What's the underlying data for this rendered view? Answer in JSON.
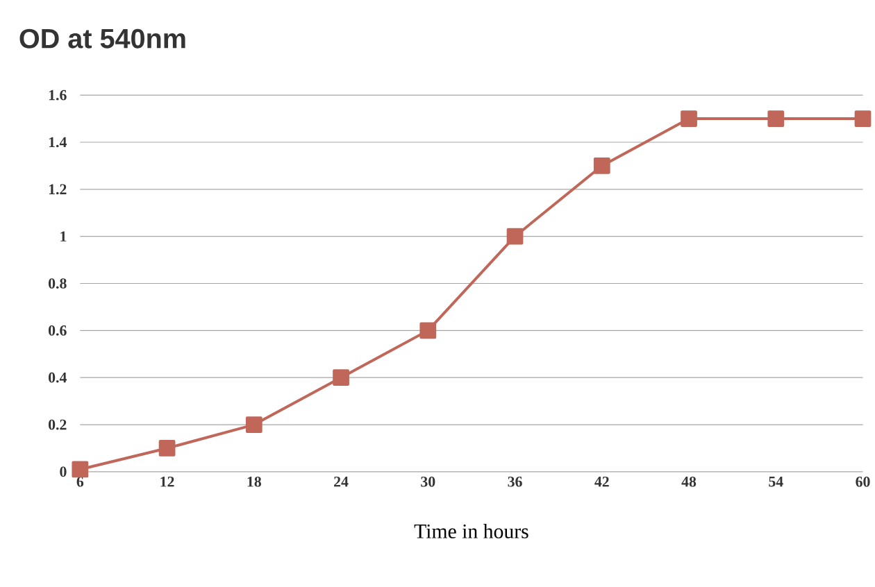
{
  "chart_data": {
    "type": "line",
    "title": "OD at 540nm",
    "xlabel": "Time in hours",
    "categories": [
      "6",
      "12",
      "18",
      "24",
      "30",
      "36",
      "42",
      "48",
      "54",
      "60"
    ],
    "series": [
      {
        "color": "#c0675a",
        "values": [
          0.01,
          0.1,
          0.2,
          0.4,
          0.6,
          1.0,
          1.3,
          1.5,
          1.5,
          1.5
        ]
      }
    ],
    "ylim": [
      0,
      1.6
    ],
    "yticks": [
      0,
      0.2,
      0.4,
      0.6,
      0.8,
      1,
      1.2,
      1.4,
      1.6
    ],
    "grid": "y",
    "marker": "square",
    "line_style": "solid"
  }
}
